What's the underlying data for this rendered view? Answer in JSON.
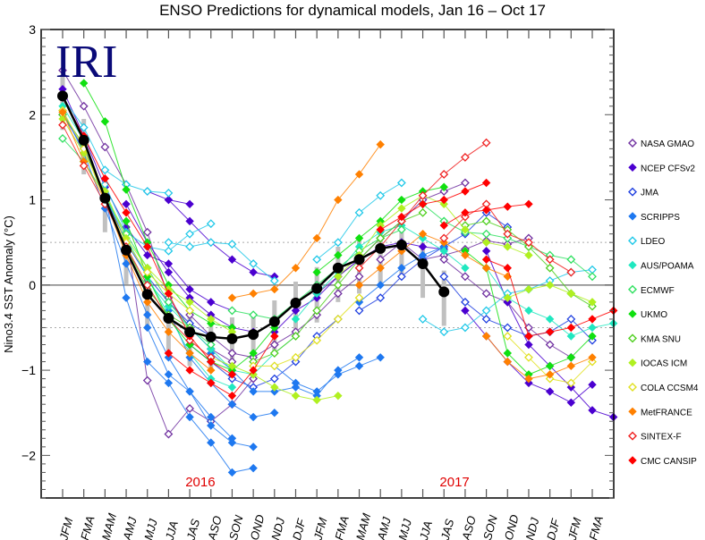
{
  "chart_data": {
    "type": "line",
    "title": "ENSO Predictions for dynamical models, Jan 16 – Oct 17",
    "logo": "IRI",
    "xlabel": "",
    "ylabel": "Nino3.4 SST Anomaly (°C)",
    "ylim": [
      -2.5,
      3
    ],
    "yticks": [
      -2,
      -1,
      0,
      1,
      2,
      3
    ],
    "ytick_labels": [
      "−2",
      "−1",
      "0",
      "1",
      "2",
      "3"
    ],
    "reference_lines": {
      "solid": [
        0
      ],
      "dotted": [
        0.5,
        -0.5
      ]
    },
    "categories": [
      "JFM",
      "FMA",
      "MAM",
      "AMJ",
      "MJJ",
      "JJA",
      "JAS",
      "ASO",
      "SON",
      "OND",
      "NDJ",
      "DJF",
      "JFM",
      "FMA",
      "MAM",
      "AMJ",
      "MJJ",
      "JJA",
      "JAS",
      "ASO",
      "SON",
      "OND",
      "NDJ",
      "DJF",
      "JFM",
      "FMA"
    ],
    "year_labels": [
      {
        "text": "2016",
        "at_category_index": 6.5
      },
      {
        "text": "2017",
        "at_category_index": 18.5
      }
    ],
    "legend_position": "right",
    "legend": [
      {
        "name": "NASA GMAO",
        "color": "#7030a0",
        "marker": "open-diamond"
      },
      {
        "name": "NCEP CFSv2",
        "color": "#4b00d0",
        "marker": "filled-diamond"
      },
      {
        "name": "JMA",
        "color": "#2040e0",
        "marker": "open-diamond"
      },
      {
        "name": "SCRIPPS",
        "color": "#1e78f0",
        "marker": "filled-diamond"
      },
      {
        "name": "LDEO",
        "color": "#20c8e8",
        "marker": "open-diamond"
      },
      {
        "name": "AUS/POAMA",
        "color": "#20e8c0",
        "marker": "filled-diamond"
      },
      {
        "name": "ECMWF",
        "color": "#30e060",
        "marker": "open-diamond"
      },
      {
        "name": "UKMO",
        "color": "#10e010",
        "marker": "filled-diamond"
      },
      {
        "name": "KMA SNU",
        "color": "#50d020",
        "marker": "open-diamond"
      },
      {
        "name": "IOCAS ICM",
        "color": "#b0f020",
        "marker": "filled-diamond"
      },
      {
        "name": "COLA CCSM4",
        "color": "#e0e020",
        "marker": "open-diamond"
      },
      {
        "name": "MetFRANCE",
        "color": "#ff8000",
        "marker": "filled-diamond"
      },
      {
        "name": "SINTEX-F",
        "color": "#f02020",
        "marker": "open-diamond"
      },
      {
        "name": "CMC CANSIP",
        "color": "#ff0000",
        "marker": "filled-diamond"
      }
    ],
    "observed_mean": {
      "name": "Observed / ensemble mean",
      "color": "#000000",
      "start_index": 0,
      "values": [
        2.22,
        1.7,
        1.02,
        0.41,
        -0.11,
        -0.39,
        -0.55,
        -0.61,
        -0.63,
        -0.58,
        -0.43,
        -0.21,
        -0.04,
        0.2,
        0.3,
        0.43,
        0.47,
        0.25,
        -0.08
      ]
    },
    "series": [
      {
        "model": 0,
        "start": 0,
        "values": [
          2.52,
          2.1,
          1.62,
          1.18,
          0.62,
          -0.15,
          -0.5,
          -0.75,
          -0.9
        ]
      },
      {
        "model": 0,
        "start": 3,
        "values": [
          0.62,
          -1.12,
          -1.75,
          -1.45,
          -1.6,
          -1.4,
          -1.1
        ]
      },
      {
        "model": 0,
        "start": 6,
        "values": [
          -0.35,
          -0.6,
          -0.8,
          -0.85,
          -0.7,
          -0.55,
          -0.35,
          -0.1,
          0.1
        ]
      },
      {
        "model": 0,
        "start": 12,
        "values": [
          -0.1,
          0.1,
          0.3,
          0.55,
          0.75,
          1.0,
          1.1,
          1.2
        ]
      },
      {
        "model": 0,
        "start": 15,
        "values": [
          0.3,
          0.5,
          0.3,
          0.35,
          0.42,
          0.52,
          0.48,
          0.55
        ]
      },
      {
        "model": 0,
        "start": 18,
        "values": [
          0.3,
          0.1,
          -0.1,
          -0.2,
          -0.5,
          -0.7,
          -0.85
        ]
      },
      {
        "model": 1,
        "start": 0,
        "values": [
          2.3,
          1.75,
          1.15,
          0.68,
          0.35,
          0.25,
          -0.05,
          -0.2,
          -0.3
        ]
      },
      {
        "model": 1,
        "start": 3,
        "values": [
          0.95,
          0.5,
          0.15,
          -0.15,
          -0.35,
          -0.5,
          -0.55
        ]
      },
      {
        "model": 1,
        "start": 5,
        "values": [
          1.0,
          0.75,
          0.5,
          0.3,
          0.15,
          0.1
        ]
      },
      {
        "model": 1,
        "start": 4,
        "values": [
          1.1,
          1.0,
          0.95
        ]
      },
      {
        "model": 1,
        "start": 10,
        "values": [
          -0.55,
          -0.3,
          -0.15,
          0.1,
          0.3,
          0.45,
          0.5,
          0.45,
          0.42
        ]
      },
      {
        "model": 1,
        "start": 20,
        "values": [
          0.4,
          -0.2,
          -0.7,
          -0.95,
          -1.2,
          -1.47,
          -1.55
        ]
      },
      {
        "model": 1,
        "start": 19,
        "values": [
          -0.3,
          -0.6,
          -0.9,
          -1.15,
          -1.25,
          -1.38,
          -1.17
        ]
      },
      {
        "model": 2,
        "start": 0,
        "values": [
          2.0,
          1.6,
          1.05,
          0.5,
          0.1,
          -0.2,
          -0.45,
          -0.6
        ]
      },
      {
        "model": 2,
        "start": 6,
        "values": [
          -0.7,
          -0.9,
          -1.1,
          -1.2,
          -1.1,
          -0.9,
          -0.6,
          -0.4
        ]
      },
      {
        "model": 2,
        "start": 14,
        "values": [
          -0.3,
          -0.15,
          0.1,
          0.3,
          0.45,
          0.6,
          0.85,
          0.68
        ]
      },
      {
        "model": 2,
        "start": 18,
        "values": [
          0.1,
          -0.2,
          -0.4,
          -0.5,
          -0.6,
          -0.55,
          -0.4,
          -0.65
        ]
      },
      {
        "model": 3,
        "start": 0,
        "values": [
          2.05,
          1.55,
          0.9,
          0.25,
          -0.35,
          -0.85,
          -1.25,
          -1.55,
          -1.8
        ]
      },
      {
        "model": 3,
        "start": 2,
        "values": [
          1.05,
          -0.15,
          -0.9,
          -1.15,
          -1.55,
          -1.85,
          -2.2,
          -2.15
        ]
      },
      {
        "model": 3,
        "start": 4,
        "values": [
          -0.5,
          -1.05,
          -1.25,
          -1.65,
          -1.85,
          -1.9
        ]
      },
      {
        "model": 3,
        "start": 5,
        "values": [
          -0.3,
          -0.85,
          -1.15,
          -1.4,
          -1.55,
          -1.5
        ]
      },
      {
        "model": 3,
        "start": 7,
        "values": [
          -0.8,
          -1.0,
          -1.25,
          -1.25,
          -1.2,
          -1.3,
          -1.0,
          -0.85
        ]
      },
      {
        "model": 3,
        "start": 10,
        "values": [
          -0.95,
          -1.15,
          -1.25,
          -1.05,
          -0.95,
          -0.85
        ]
      },
      {
        "model": 3,
        "start": 14,
        "values": [
          -0.2,
          0.0,
          0.2,
          0.35,
          0.45
        ]
      },
      {
        "model": 4,
        "start": 0,
        "values": [
          2.2,
          1.85,
          1.35,
          1.18,
          1.1,
          1.08
        ]
      },
      {
        "model": 4,
        "start": 2,
        "values": [
          1.18,
          0.62,
          0.45,
          0.4,
          0.6,
          0.72
        ]
      },
      {
        "model": 4,
        "start": 5,
        "values": [
          0.5,
          0.45,
          0.5,
          0.48,
          0.25,
          0.05
        ]
      },
      {
        "model": 4,
        "start": 12,
        "values": [
          0.3,
          0.5,
          0.85,
          1.05,
          1.2
        ]
      },
      {
        "model": 4,
        "start": 17,
        "values": [
          -0.4,
          -0.55,
          -0.5,
          -0.3,
          -0.1,
          -0.05,
          0.05,
          0.15,
          0.18
        ]
      },
      {
        "model": 5,
        "start": 0,
        "values": [
          2.1,
          1.7,
          1.05,
          0.55,
          0.1,
          -0.35,
          -0.8,
          -1.1,
          -1.2
        ]
      },
      {
        "model": 5,
        "start": 4,
        "values": [
          0.05,
          -0.25,
          -0.5,
          -0.75,
          -1.0,
          -1.05,
          -0.8,
          -0.6
        ]
      },
      {
        "model": 5,
        "start": 11,
        "values": [
          -0.4,
          -0.1,
          0.15,
          0.45,
          0.62,
          0.7,
          0.55,
          0.4,
          0.2
        ]
      },
      {
        "model": 5,
        "start": 20,
        "values": [
          0.2,
          -0.15,
          -0.3,
          -0.4,
          -0.6,
          -0.5,
          -0.45
        ]
      },
      {
        "model": 6,
        "start": 0,
        "values": [
          1.72,
          1.45,
          1.05,
          0.6,
          0.2,
          -0.2,
          -0.5,
          -0.7
        ]
      },
      {
        "model": 6,
        "start": 8,
        "values": [
          -0.3,
          -0.35,
          -0.4,
          -0.2,
          0.0,
          0.2,
          0.4,
          0.55,
          0.65
        ]
      },
      {
        "model": 6,
        "start": 17,
        "values": [
          0.95,
          0.75,
          0.62,
          0.6,
          0.55,
          0.45,
          0.35,
          0.3,
          0.1
        ]
      },
      {
        "model": 7,
        "start": 1,
        "values": [
          2.37,
          1.92,
          1.12,
          0.5,
          0.0,
          -0.3,
          -0.45,
          -0.5
        ]
      },
      {
        "model": 7,
        "start": 3,
        "values": [
          0.75,
          0.1,
          -0.4,
          -0.7,
          -0.9,
          -1.0,
          -0.8,
          -0.5
        ]
      },
      {
        "model": 7,
        "start": 12,
        "values": [
          0.15,
          0.35,
          0.55,
          0.75,
          1.0,
          1.1,
          1.15
        ]
      },
      {
        "model": 7,
        "start": 19,
        "values": [
          0.4,
          0.2,
          -0.8,
          -1.05,
          -0.95,
          -0.85,
          -0.6
        ]
      },
      {
        "model": 8,
        "start": 0,
        "values": [
          2.0,
          1.65,
          1.0,
          0.45,
          -0.05,
          -0.35,
          -0.5
        ]
      },
      {
        "model": 8,
        "start": 9,
        "values": [
          -0.9,
          -0.8,
          -0.6,
          -0.3,
          0.0,
          0.3,
          0.55,
          0.75,
          0.85
        ]
      },
      {
        "model": 8,
        "start": 19,
        "values": [
          0.7,
          0.75,
          0.65,
          0.45,
          0.2,
          -0.1,
          -0.25
        ]
      },
      {
        "model": 9,
        "start": 0,
        "values": [
          1.95,
          1.55,
          1.1,
          0.55,
          0.2,
          -0.05,
          -0.2,
          -0.4,
          -0.55
        ]
      },
      {
        "model": 9,
        "start": 7,
        "values": [
          -0.85,
          -0.95,
          -1.05,
          -1.2,
          -1.3,
          -1.35,
          -1.3
        ]
      },
      {
        "model": 9,
        "start": 13,
        "values": [
          0.1,
          0.35,
          0.7,
          0.9,
          1.05,
          0.95,
          0.65,
          0.5,
          0.45,
          0.35
        ]
      },
      {
        "model": 9,
        "start": 21,
        "values": [
          -0.15,
          -0.05,
          0.0,
          -0.1,
          -0.2
        ]
      },
      {
        "model": 10,
        "start": 0,
        "values": [
          2.05,
          1.6,
          1.0,
          0.5,
          0.15,
          -0.1,
          -0.3
        ]
      },
      {
        "model": 10,
        "start": 9,
        "values": [
          -0.95,
          -0.95,
          -0.85,
          -0.65,
          -0.4,
          -0.15
        ]
      },
      {
        "model": 10,
        "start": 21,
        "values": [
          -0.6,
          -0.85,
          -1.1,
          -1.15,
          -0.9
        ]
      },
      {
        "model": 11,
        "start": 0,
        "values": [
          2.03,
          1.45,
          1.0,
          0.35,
          -0.2,
          -0.55,
          -0.8,
          -1.0
        ]
      },
      {
        "model": 11,
        "start": 8,
        "values": [
          -0.15,
          -0.1,
          -0.05,
          0.2,
          0.55,
          1.0,
          1.3,
          1.65
        ]
      },
      {
        "model": 11,
        "start": 14,
        "values": [
          0.0,
          0.2,
          0.4,
          0.6,
          0.5,
          0.35,
          0.2,
          0.1
        ]
      },
      {
        "model": 11,
        "start": 20,
        "values": [
          -0.6,
          -0.9,
          -1.1,
          -1.05,
          -0.95,
          -0.85
        ]
      },
      {
        "model": 12,
        "start": 0,
        "values": [
          1.88,
          1.4,
          0.95,
          0.45,
          0.0,
          -0.4,
          -0.65,
          -0.85
        ]
      },
      {
        "model": 12,
        "start": 14,
        "values": [
          0.2,
          0.45,
          0.75,
          1.05,
          1.3,
          1.5,
          1.67
        ]
      },
      {
        "model": 12,
        "start": 18,
        "values": [
          0.55,
          0.8,
          0.95,
          0.6,
          0.5,
          0.3,
          0.15
        ]
      },
      {
        "model": 13,
        "start": 0,
        "values": [
          2.2,
          1.75,
          1.25,
          0.85,
          0.45,
          -0.1,
          -0.6,
          -0.9,
          -1.05
        ]
      },
      {
        "model": 13,
        "start": 5,
        "values": [
          -0.8,
          -1.0,
          -1.15,
          -1.3,
          -1.0,
          -0.6
        ]
      },
      {
        "model": 13,
        "start": 15,
        "values": [
          0.65,
          0.8,
          0.95,
          1.0,
          1.1,
          1.2
        ]
      },
      {
        "model": 13,
        "start": 18,
        "values": [
          0.7,
          0.85,
          0.88,
          0.92,
          0.95
        ]
      },
      {
        "model": 13,
        "start": 20,
        "values": [
          0.3,
          0.2,
          -0.6,
          -0.55,
          -0.5,
          -0.4,
          -0.3
        ]
      }
    ]
  }
}
